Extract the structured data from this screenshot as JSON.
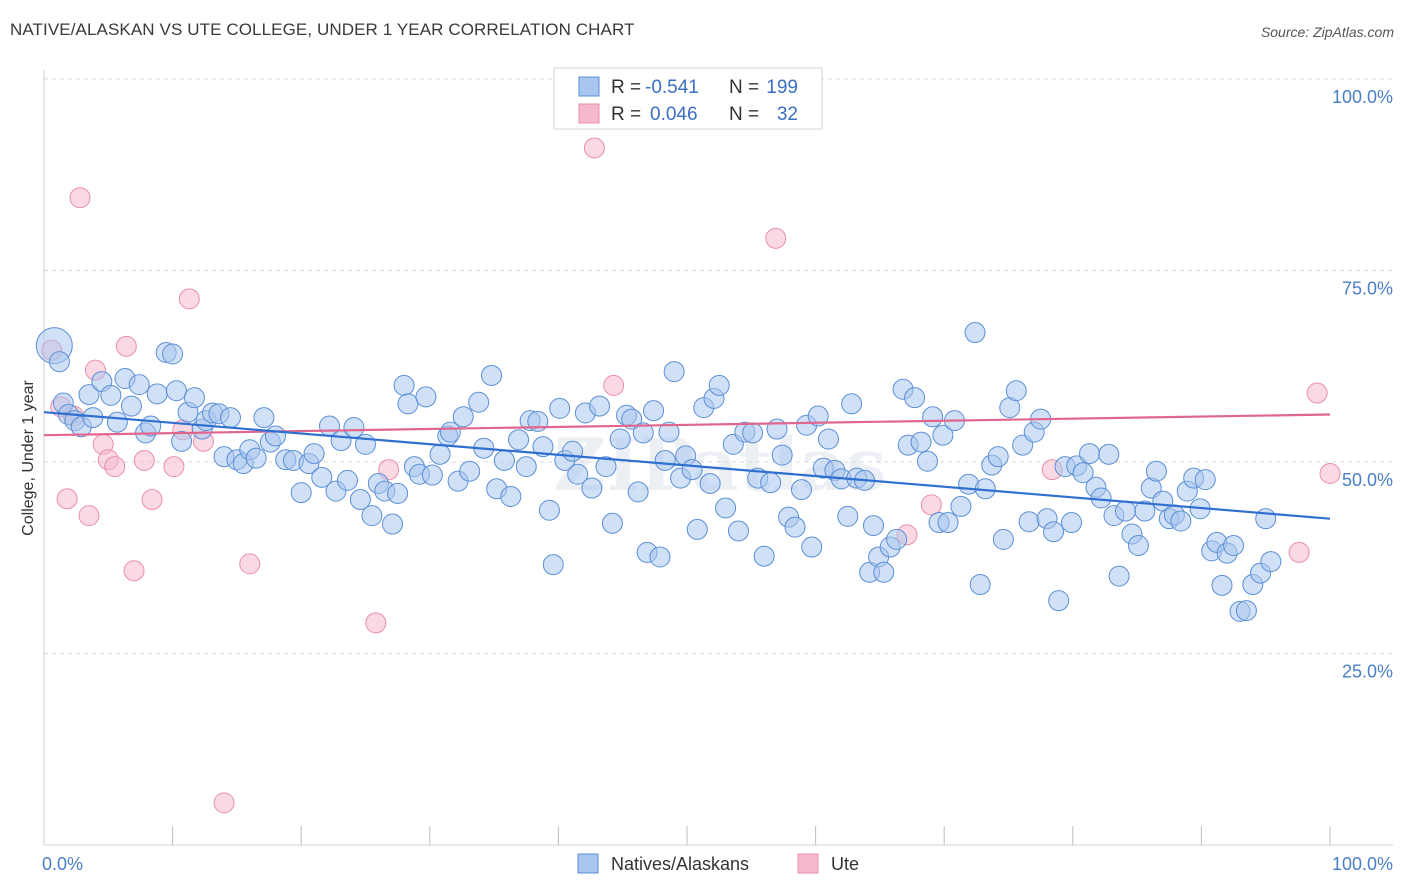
{
  "title": "NATIVE/ALASKAN VS UTE COLLEGE, UNDER 1 YEAR CORRELATION CHART",
  "source": "Source: ZipAtlas.com",
  "watermark": "ZIPatlas",
  "chart_data": {
    "type": "scatter",
    "xlabel": "",
    "ylabel": "College, Under 1 year",
    "xlim": [
      0,
      100
    ],
    "ylim": [
      0,
      100
    ],
    "x_tick_labels": [
      "0.0%",
      "100.0%"
    ],
    "y_ticks": [
      25,
      50,
      75,
      100
    ],
    "y_tick_labels": [
      "25.0%",
      "50.0%",
      "75.0%",
      "100.0%"
    ],
    "grid": true,
    "legend_position": "top-center",
    "colors": {
      "natives_fill": "#a9c6ef",
      "natives_stroke": "#5b8fd6",
      "natives_line": "#2f6fd0",
      "ute_fill": "#f6b9cc",
      "ute_stroke": "#e98fab",
      "ute_line": "#e0668e"
    },
    "stats": [
      {
        "r_label": "R =",
        "r_value": "-0.541",
        "n_label": "N =",
        "n_value": "199"
      },
      {
        "r_label": "R =",
        "r_value": "0.046",
        "n_label": "N =",
        "n_value": "32"
      }
    ],
    "series": [
      {
        "name": "Natives/Alaskans",
        "trend": {
          "x": [
            0,
            100
          ],
          "y": [
            56.5,
            42.6
          ]
        },
        "points": [
          [
            0.8,
            65.2
          ],
          [
            1.2,
            63.1
          ],
          [
            1.5,
            57.7
          ],
          [
            1.9,
            56.2
          ],
          [
            2.4,
            55.4
          ],
          [
            2.9,
            54.6
          ],
          [
            3.5,
            58.8
          ],
          [
            3.8,
            55.8
          ],
          [
            4.5,
            60.5
          ],
          [
            5.2,
            58.7
          ],
          [
            5.7,
            55.2
          ],
          [
            6.3,
            60.9
          ],
          [
            6.8,
            57.3
          ],
          [
            7.4,
            60.1
          ],
          [
            7.9,
            53.8
          ],
          [
            8.3,
            54.7
          ],
          [
            8.8,
            58.9
          ],
          [
            9.5,
            64.3
          ],
          [
            10.0,
            64.1
          ],
          [
            10.3,
            59.3
          ],
          [
            10.7,
            52.7
          ],
          [
            11.2,
            56.5
          ],
          [
            11.7,
            58.4
          ],
          [
            12.3,
            54.3
          ],
          [
            12.6,
            55.4
          ],
          [
            13.1,
            56.4
          ],
          [
            13.6,
            56.3
          ],
          [
            14.0,
            50.7
          ],
          [
            14.5,
            55.8
          ],
          [
            15.0,
            50.3
          ],
          [
            15.5,
            49.8
          ],
          [
            16.0,
            51.6
          ],
          [
            16.5,
            50.5
          ],
          [
            17.1,
            55.8
          ],
          [
            17.6,
            52.6
          ],
          [
            18.0,
            53.4
          ],
          [
            18.8,
            50.3
          ],
          [
            19.4,
            50.2
          ],
          [
            20.0,
            46.0
          ],
          [
            20.6,
            49.8
          ],
          [
            21.0,
            51.1
          ],
          [
            21.6,
            48.0
          ],
          [
            22.2,
            54.7
          ],
          [
            22.7,
            46.2
          ],
          [
            23.1,
            52.8
          ],
          [
            23.6,
            47.6
          ],
          [
            24.1,
            54.5
          ],
          [
            24.6,
            45.1
          ],
          [
            25.0,
            52.3
          ],
          [
            25.5,
            43.0
          ],
          [
            26.0,
            47.2
          ],
          [
            26.5,
            46.2
          ],
          [
            27.1,
            41.9
          ],
          [
            27.5,
            45.9
          ],
          [
            28.0,
            60.0
          ],
          [
            28.3,
            57.6
          ],
          [
            28.8,
            49.4
          ],
          [
            29.2,
            48.4
          ],
          [
            29.7,
            58.5
          ],
          [
            30.2,
            48.3
          ],
          [
            30.8,
            51.0
          ],
          [
            31.4,
            53.4
          ],
          [
            31.6,
            53.9
          ],
          [
            32.2,
            47.5
          ],
          [
            32.6,
            55.9
          ],
          [
            33.1,
            48.8
          ],
          [
            33.8,
            57.8
          ],
          [
            34.2,
            51.8
          ],
          [
            34.8,
            61.3
          ],
          [
            35.2,
            46.5
          ],
          [
            35.8,
            50.2
          ],
          [
            36.3,
            45.5
          ],
          [
            36.9,
            52.9
          ],
          [
            37.5,
            49.4
          ],
          [
            37.8,
            55.4
          ],
          [
            38.4,
            55.3
          ],
          [
            38.8,
            52.0
          ],
          [
            39.3,
            43.7
          ],
          [
            39.6,
            36.6
          ],
          [
            40.1,
            57.0
          ],
          [
            40.5,
            50.2
          ],
          [
            41.1,
            51.4
          ],
          [
            41.5,
            48.4
          ],
          [
            42.1,
            56.4
          ],
          [
            42.6,
            46.6
          ],
          [
            43.2,
            57.3
          ],
          [
            43.7,
            49.4
          ],
          [
            44.2,
            42.0
          ],
          [
            44.8,
            53.0
          ],
          [
            45.3,
            56.1
          ],
          [
            45.7,
            55.6
          ],
          [
            46.2,
            46.1
          ],
          [
            46.6,
            53.8
          ],
          [
            46.9,
            38.2
          ],
          [
            47.4,
            56.7
          ],
          [
            47.9,
            37.6
          ],
          [
            48.3,
            50.2
          ],
          [
            48.6,
            53.9
          ],
          [
            49.0,
            61.8
          ],
          [
            49.5,
            47.9
          ],
          [
            49.9,
            50.8
          ],
          [
            50.4,
            49.0
          ],
          [
            50.8,
            41.2
          ],
          [
            51.3,
            57.1
          ],
          [
            51.8,
            47.2
          ],
          [
            52.1,
            58.3
          ],
          [
            52.5,
            60.0
          ],
          [
            53.0,
            44.0
          ],
          [
            53.6,
            52.3
          ],
          [
            54.0,
            41.0
          ],
          [
            54.5,
            53.9
          ],
          [
            55.1,
            53.8
          ],
          [
            55.5,
            47.9
          ],
          [
            56.0,
            37.7
          ],
          [
            56.5,
            47.3
          ],
          [
            57.0,
            54.3
          ],
          [
            57.4,
            50.9
          ],
          [
            57.9,
            42.8
          ],
          [
            58.4,
            41.5
          ],
          [
            58.9,
            46.4
          ],
          [
            59.3,
            54.8
          ],
          [
            59.7,
            38.9
          ],
          [
            60.2,
            56.0
          ],
          [
            60.6,
            49.2
          ],
          [
            61.0,
            53.0
          ],
          [
            61.5,
            48.9
          ],
          [
            62.0,
            47.8
          ],
          [
            62.5,
            42.9
          ],
          [
            62.8,
            57.6
          ],
          [
            63.2,
            47.9
          ],
          [
            63.8,
            47.6
          ],
          [
            64.2,
            35.6
          ],
          [
            64.5,
            41.7
          ],
          [
            64.9,
            37.6
          ],
          [
            65.3,
            35.6
          ],
          [
            65.8,
            38.9
          ],
          [
            66.3,
            39.9
          ],
          [
            66.8,
            59.5
          ],
          [
            67.2,
            52.2
          ],
          [
            67.7,
            58.4
          ],
          [
            68.2,
            52.6
          ],
          [
            68.7,
            50.1
          ],
          [
            69.1,
            55.9
          ],
          [
            69.6,
            42.1
          ],
          [
            69.9,
            53.5
          ],
          [
            70.3,
            42.1
          ],
          [
            70.8,
            55.4
          ],
          [
            71.3,
            44.2
          ],
          [
            71.9,
            47.1
          ],
          [
            72.4,
            66.9
          ],
          [
            72.8,
            34.0
          ],
          [
            73.2,
            46.5
          ],
          [
            73.7,
            49.6
          ],
          [
            74.2,
            50.7
          ],
          [
            74.6,
            39.9
          ],
          [
            75.1,
            57.1
          ],
          [
            75.6,
            59.3
          ],
          [
            76.1,
            52.2
          ],
          [
            76.6,
            42.2
          ],
          [
            77.0,
            53.9
          ],
          [
            77.5,
            55.6
          ],
          [
            78.0,
            42.6
          ],
          [
            78.5,
            40.9
          ],
          [
            78.9,
            31.9
          ],
          [
            79.4,
            49.4
          ],
          [
            79.9,
            42.1
          ],
          [
            80.3,
            49.5
          ],
          [
            80.8,
            48.6
          ],
          [
            81.3,
            51.1
          ],
          [
            81.8,
            46.7
          ],
          [
            82.2,
            45.3
          ],
          [
            82.8,
            51.0
          ],
          [
            83.2,
            43.0
          ],
          [
            83.6,
            35.1
          ],
          [
            84.1,
            43.6
          ],
          [
            84.6,
            40.6
          ],
          [
            85.1,
            39.1
          ],
          [
            85.6,
            43.6
          ],
          [
            86.1,
            46.6
          ],
          [
            86.5,
            48.8
          ],
          [
            87.0,
            44.9
          ],
          [
            87.5,
            42.6
          ],
          [
            87.9,
            43.1
          ],
          [
            88.4,
            42.3
          ],
          [
            88.9,
            46.2
          ],
          [
            89.4,
            47.9
          ],
          [
            89.9,
            43.9
          ],
          [
            90.3,
            47.7
          ],
          [
            90.8,
            38.4
          ],
          [
            91.2,
            39.5
          ],
          [
            91.6,
            33.9
          ],
          [
            92.0,
            38.1
          ],
          [
            92.5,
            39.1
          ],
          [
            93.0,
            30.5
          ],
          [
            93.5,
            30.6
          ],
          [
            94.0,
            34.0
          ],
          [
            94.6,
            35.5
          ],
          [
            95.0,
            42.6
          ],
          [
            95.4,
            37.0
          ]
        ]
      },
      {
        "name": "Ute",
        "trend": {
          "x": [
            0,
            100
          ],
          "y": [
            53.5,
            56.2
          ]
        },
        "points": [
          [
            0.6,
            64.6
          ],
          [
            1.3,
            57.2
          ],
          [
            1.8,
            45.2
          ],
          [
            2.3,
            56.0
          ],
          [
            2.8,
            84.5
          ],
          [
            3.5,
            43.0
          ],
          [
            4.0,
            62.0
          ],
          [
            4.6,
            52.3
          ],
          [
            5.0,
            50.3
          ],
          [
            5.5,
            49.4
          ],
          [
            6.4,
            65.1
          ],
          [
            7.0,
            35.8
          ],
          [
            7.8,
            50.2
          ],
          [
            8.4,
            45.1
          ],
          [
            10.1,
            49.4
          ],
          [
            10.8,
            54.2
          ],
          [
            11.3,
            71.3
          ],
          [
            12.4,
            52.7
          ],
          [
            14.0,
            5.5
          ],
          [
            16.0,
            36.7
          ],
          [
            25.8,
            29.0
          ],
          [
            26.8,
            49.0
          ],
          [
            42.8,
            91.0
          ],
          [
            44.3,
            60.0
          ],
          [
            49.3,
            100.0
          ],
          [
            56.9,
            79.2
          ],
          [
            67.1,
            40.5
          ],
          [
            69.0,
            44.4
          ],
          [
            78.4,
            49.0
          ],
          [
            97.6,
            38.2
          ],
          [
            99.0,
            59.0
          ],
          [
            100.0,
            48.5
          ]
        ]
      }
    ]
  }
}
